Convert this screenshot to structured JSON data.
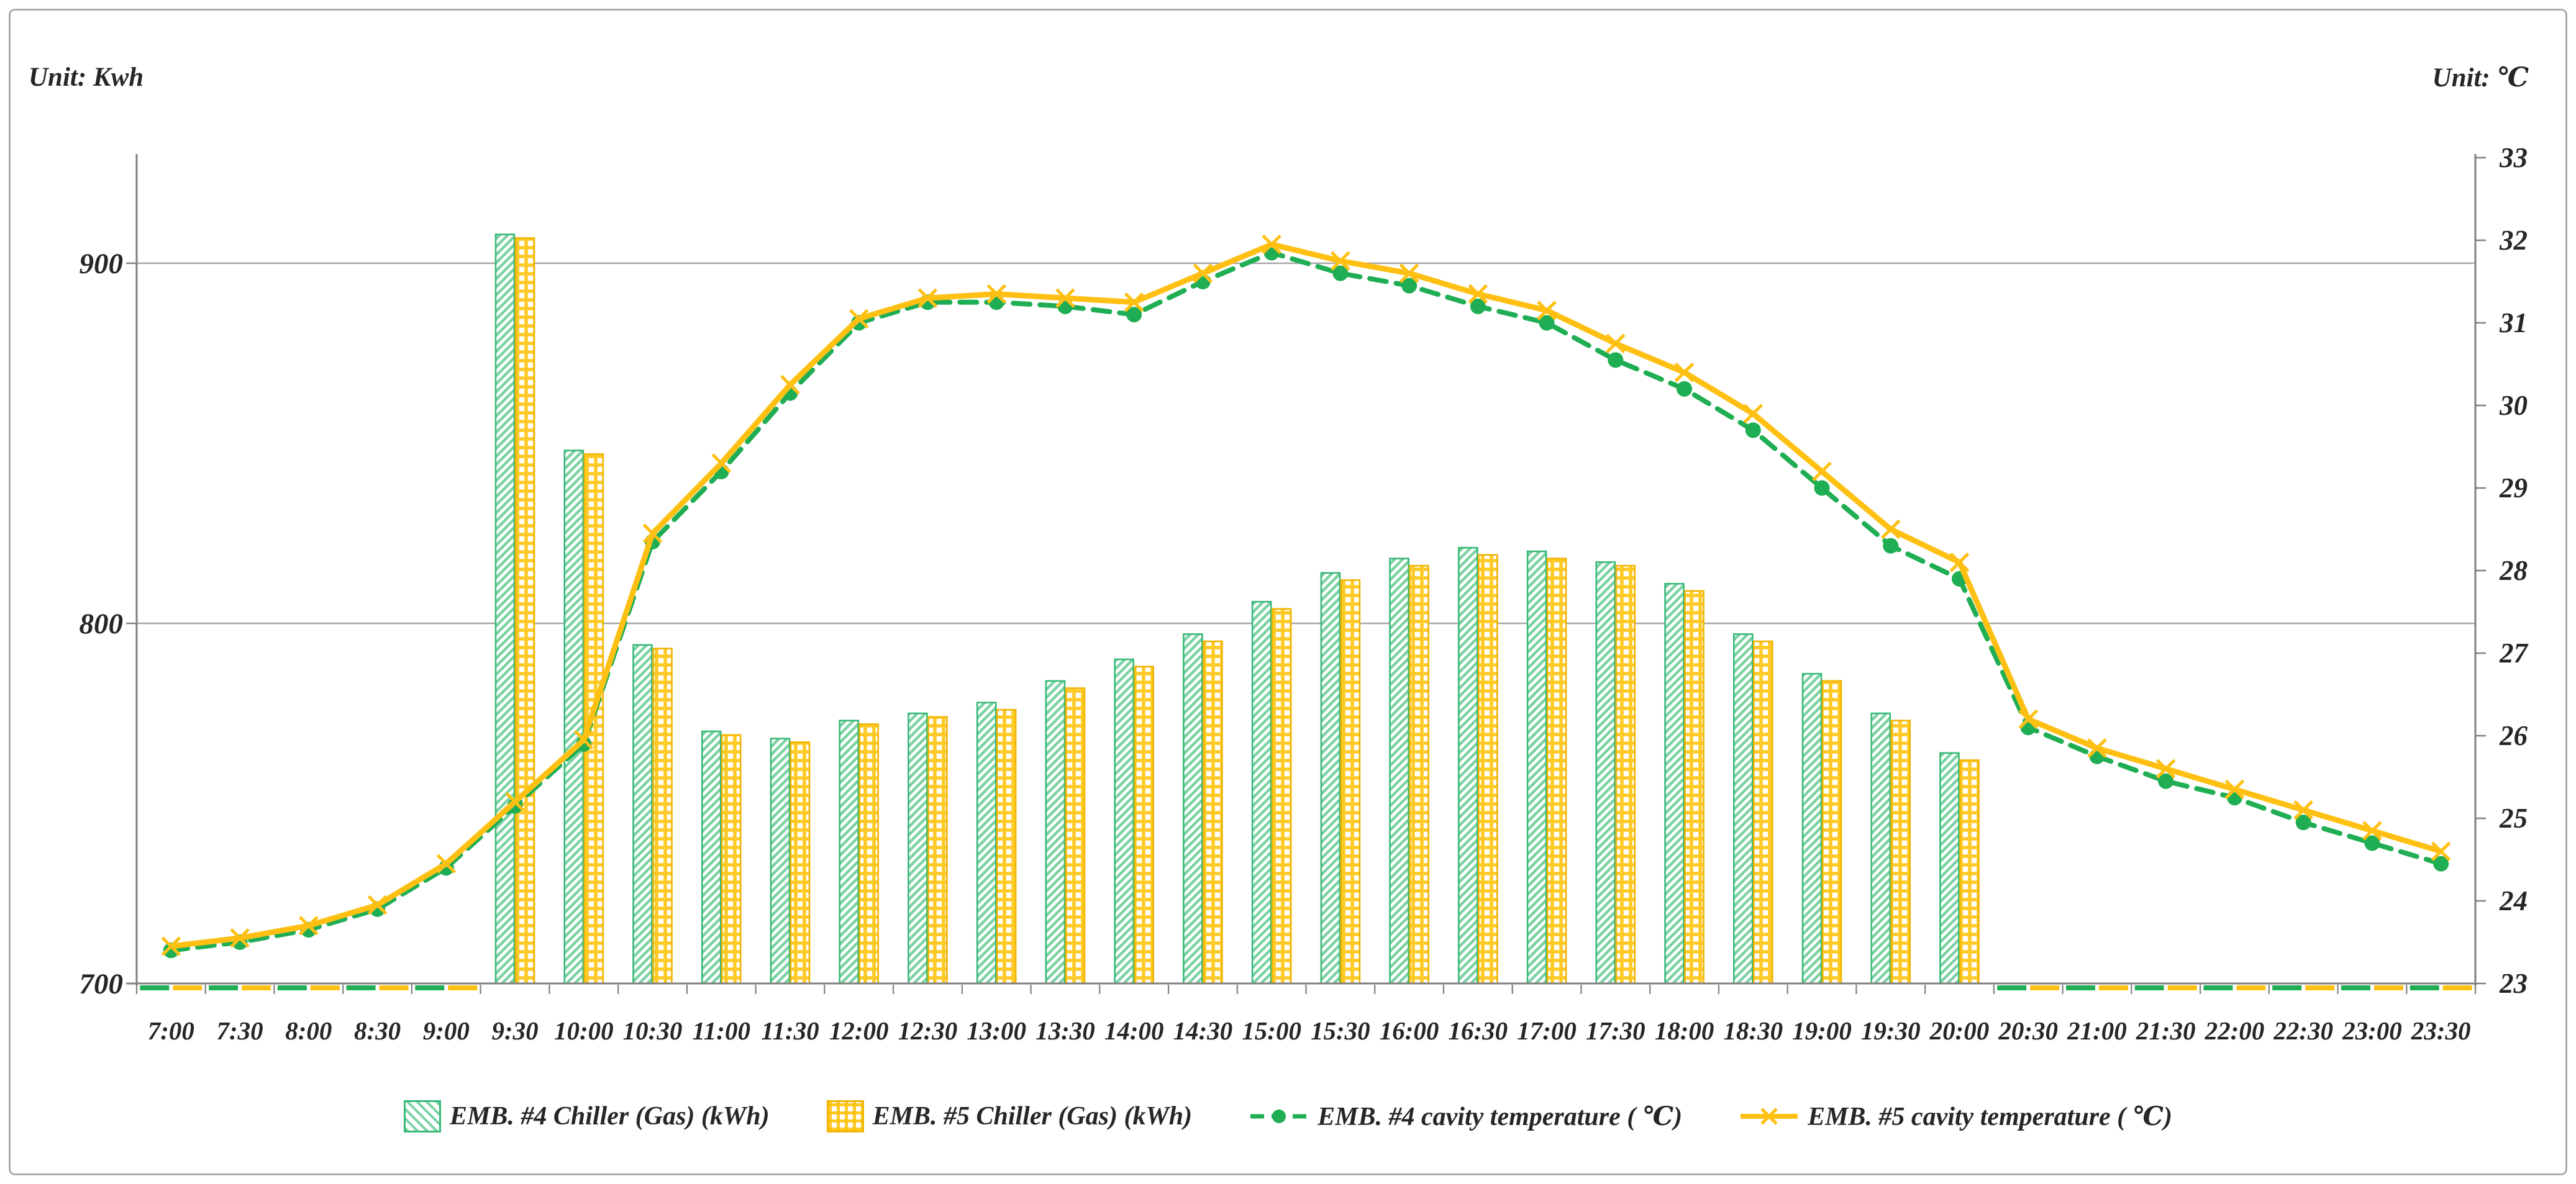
{
  "page": {
    "unit_left": "Unit: Kwh",
    "unit_right": "Unit: ℃"
  },
  "colors": {
    "green_line": "#1fae53",
    "green_border": "#36b877",
    "green_hatch": "#79d2a2",
    "orange_line": "#ffc013",
    "orange_border": "#f0b400",
    "orange_hatch": "#ffc000",
    "gridline": "#a6a6a6",
    "axis": "#808080",
    "text": "#262626"
  },
  "chart_data": {
    "type": "combo-bar-line",
    "categories": [
      "7:00",
      "7:30",
      "8:00",
      "8:30",
      "9:00",
      "9:30",
      "10:00",
      "10:30",
      "11:00",
      "11:30",
      "12:00",
      "12:30",
      "13:00",
      "13:30",
      "14:00",
      "14:30",
      "15:00",
      "15:30",
      "16:00",
      "16:30",
      "17:00",
      "17:30",
      "18:00",
      "18:30",
      "19:00",
      "19:30",
      "20:00",
      "20:30",
      "21:00",
      "21:30",
      "22:00",
      "22:30",
      "23:00",
      "23:30"
    ],
    "left_axis": {
      "label": "Unit: Kwh",
      "ticks": [
        700,
        800,
        900
      ],
      "min": 700,
      "grid": true
    },
    "right_axis": {
      "label": "Unit: ℃",
      "ticks": [
        23,
        24,
        25,
        26,
        27,
        28,
        29,
        30,
        31,
        32,
        33
      ],
      "min": 23,
      "max": 33,
      "grid": false
    },
    "legend_position": "bottom",
    "series": [
      {
        "name": "EMB. #4 Chiller (Gas) (kWh)",
        "type": "bar",
        "axis": "left",
        "pattern": "diagonal-hatch-green",
        "values": [
          0,
          0,
          0,
          0,
          0,
          908,
          848,
          794,
          770,
          768,
          773,
          775,
          778,
          784,
          790,
          797,
          806,
          814,
          818,
          821,
          820,
          817,
          811,
          797,
          786,
          775,
          764,
          0,
          0,
          0,
          0,
          0,
          0,
          0
        ]
      },
      {
        "name": "EMB. #5 Chiller (Gas) (kWh)",
        "type": "bar",
        "axis": "left",
        "pattern": "grid-hatch-orange",
        "values": [
          0,
          0,
          0,
          0,
          0,
          907,
          847,
          793,
          769,
          767,
          772,
          774,
          776,
          782,
          788,
          795,
          804,
          812,
          816,
          819,
          818,
          816,
          809,
          795,
          784,
          773,
          762,
          0,
          0,
          0,
          0,
          0,
          0,
          0
        ]
      },
      {
        "name": "EMB. #4 cavity temperature ( ℃)",
        "type": "line",
        "axis": "right",
        "style": "dashed-dot-green",
        "values": [
          23.4,
          23.5,
          23.65,
          23.9,
          24.4,
          25.15,
          25.9,
          28.35,
          29.2,
          30.15,
          31.0,
          31.25,
          31.25,
          31.2,
          31.1,
          31.5,
          31.85,
          31.6,
          31.45,
          31.2,
          31.0,
          30.55,
          30.2,
          29.7,
          29.0,
          28.3,
          27.9,
          26.1,
          25.75,
          25.45,
          25.25,
          24.95,
          24.7,
          24.45
        ]
      },
      {
        "name": "EMB. #5 cavity temperature ( ℃)",
        "type": "line",
        "axis": "right",
        "style": "solid-x-orange",
        "values": [
          23.45,
          23.55,
          23.7,
          23.95,
          24.45,
          25.2,
          25.95,
          28.45,
          29.3,
          30.25,
          31.05,
          31.3,
          31.35,
          31.3,
          31.25,
          31.6,
          31.95,
          31.75,
          31.6,
          31.35,
          31.15,
          30.75,
          30.4,
          29.9,
          29.2,
          28.5,
          28.1,
          26.2,
          25.85,
          25.6,
          25.35,
          25.1,
          24.85,
          24.6
        ]
      }
    ]
  }
}
